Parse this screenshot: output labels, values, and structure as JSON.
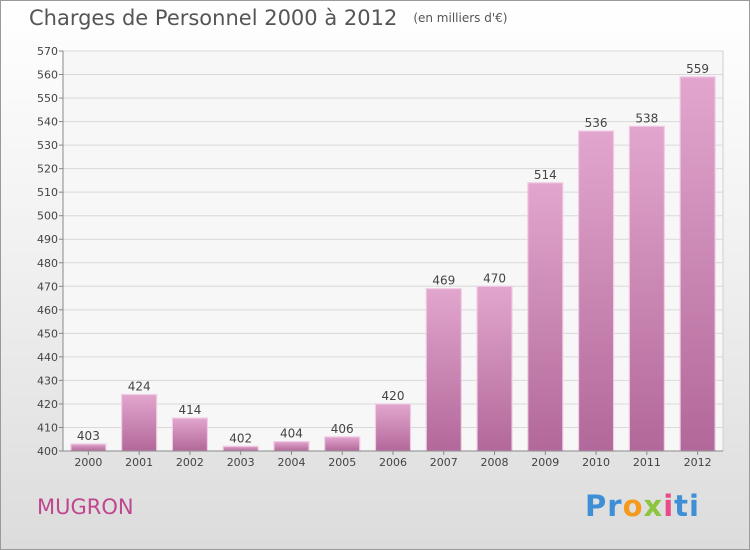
{
  "title": "Charges de Personnel 2000 à 2012",
  "unit_note": "(en milliers d'€)",
  "commune": "MUGRON",
  "logo": {
    "p1": "Pr",
    "p2": "o",
    "p3": "x",
    "p4": "i",
    "p5": "ti"
  },
  "colors": {
    "bar_top": "#e2a6ce",
    "bar_bottom": "#b2689a",
    "commune_text": "#c0468e",
    "grid": "#d8d8d8"
  },
  "chart_data": {
    "type": "bar",
    "categories": [
      "2000",
      "2001",
      "2002",
      "2003",
      "2004",
      "2005",
      "2006",
      "2007",
      "2008",
      "2009",
      "2010",
      "2011",
      "2012"
    ],
    "values": [
      403,
      424,
      414,
      402,
      404,
      406,
      420,
      469,
      470,
      514,
      536,
      538,
      559
    ],
    "ylim": [
      400,
      570
    ],
    "ytick_step": 10,
    "grid": true,
    "data_labels": true
  }
}
